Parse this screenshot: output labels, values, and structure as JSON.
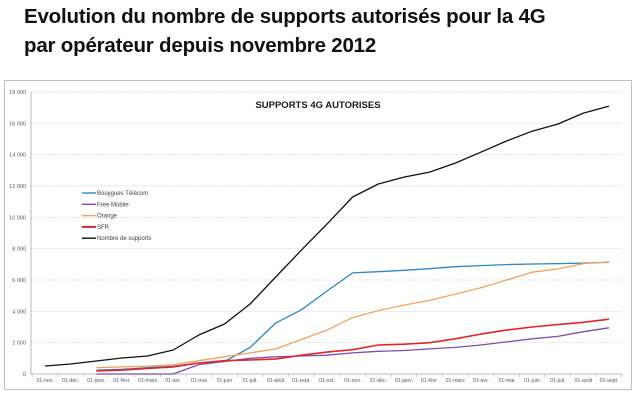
{
  "page": {
    "title_line1": "Evolution du nombre de supports autorisés pour la 4G",
    "title_line2": "par opérateur depuis novembre 2012"
  },
  "chart_data": {
    "type": "line",
    "title": "SUPPORTS 4G AUTORISES",
    "xlabel": "",
    "ylabel": "",
    "ylim": [
      0,
      18000
    ],
    "yticks": [
      0,
      2000,
      4000,
      6000,
      8000,
      10000,
      12000,
      14000,
      16000,
      18000
    ],
    "ytick_labels": [
      "0",
      "2 000",
      "4 000",
      "6 000",
      "8 000",
      "10 000",
      "12 000",
      "14 000",
      "16 000",
      "18 000"
    ],
    "grid": true,
    "legend_position": "center-left",
    "categories": [
      "01-nov.",
      "01-déc.",
      "01-janv.",
      "01-févr.",
      "01-mars",
      "01-avr.",
      "01-mai",
      "01-juin",
      "01-juil.",
      "01-août",
      "01-sept.",
      "01-oct.",
      "01-nov.",
      "01-déc.",
      "01-janv.",
      "01-févr.",
      "01-mars",
      "01-avr.",
      "01-mai",
      "01-juin",
      "01-juil.",
      "01-août",
      "01-sept."
    ],
    "series": [
      {
        "name": "Bouygues Télécom",
        "color": "#2e86c1",
        "values": [
          null,
          null,
          250,
          300,
          400,
          500,
          700,
          800,
          1700,
          3250,
          4100,
          5300,
          6450,
          6530,
          6620,
          6720,
          6850,
          6920,
          6980,
          7020,
          7050,
          7080,
          7130
        ]
      },
      {
        "name": "Free Mobile",
        "color": "#7d4ea8",
        "values": [
          null,
          null,
          0,
          0,
          0,
          0,
          600,
          800,
          1000,
          1100,
          1150,
          1200,
          1350,
          1450,
          1500,
          1600,
          1700,
          1850,
          2050,
          2250,
          2400,
          2700,
          2950
        ]
      },
      {
        "name": "Orange",
        "color": "#f0a35e",
        "values": [
          null,
          null,
          400,
          450,
          500,
          600,
          850,
          1100,
          1350,
          1600,
          2200,
          2800,
          3600,
          4050,
          4400,
          4700,
          5100,
          5500,
          6000,
          6500,
          6700,
          7050,
          7150
        ]
      },
      {
        "name": "SFR",
        "color": "#e0262b",
        "values": [
          null,
          null,
          200,
          250,
          350,
          450,
          700,
          850,
          900,
          950,
          1200,
          1400,
          1550,
          1850,
          1900,
          2000,
          2250,
          2550,
          2800,
          3000,
          3150,
          3300,
          3500
        ]
      },
      {
        "name": "Nombre de supports",
        "color": "#111111",
        "values": [
          510,
          640,
          830,
          1020,
          1150,
          1530,
          2490,
          3190,
          4470,
          6190,
          7910,
          9570,
          11300,
          12130,
          12570,
          12890,
          13460,
          14160,
          14870,
          15500,
          15950,
          16650,
          17100
        ]
      }
    ]
  }
}
